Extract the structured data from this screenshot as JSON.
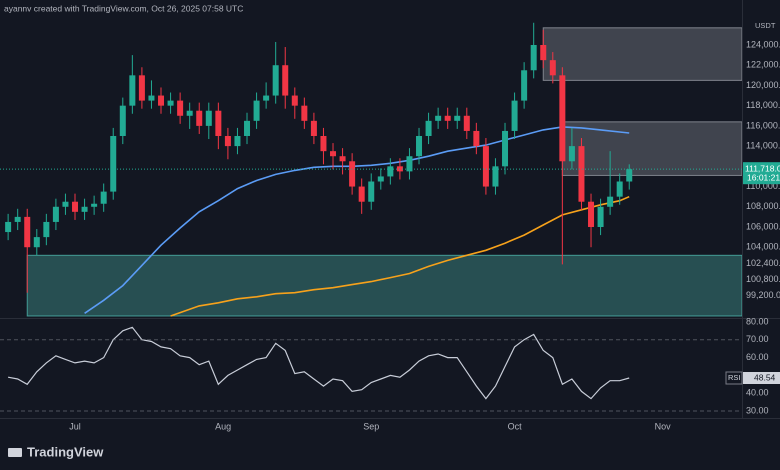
{
  "header": {
    "caption": "ayannv created with TradingView.com, Oct 26, 2025 07:58 UTC",
    "brand": "TradingView"
  },
  "chart_data": [
    {
      "type": "candlestick",
      "unit": "USDT",
      "up_color": "#22ab94",
      "down_color": "#f23645",
      "x": [
        0,
        1,
        2,
        3,
        4,
        5,
        6,
        7,
        8,
        9,
        10,
        11,
        12,
        13,
        14,
        15,
        16,
        17,
        18,
        19,
        20,
        21,
        22,
        23,
        24,
        25,
        26,
        27,
        28,
        29,
        30,
        31,
        32,
        33,
        34,
        35,
        36,
        37,
        38,
        39,
        40,
        41,
        42,
        43,
        44,
        45,
        46,
        47,
        48,
        49,
        50,
        51,
        52,
        53,
        54,
        55,
        56,
        57,
        58,
        59,
        60,
        61,
        62,
        63,
        64,
        65
      ],
      "open": [
        105500,
        106500,
        107000,
        104000,
        105000,
        106500,
        108000,
        108500,
        107500,
        108000,
        108300,
        109500,
        115000,
        118000,
        121000,
        118500,
        119000,
        118000,
        118500,
        117000,
        117500,
        116000,
        117500,
        115000,
        114000,
        115000,
        116500,
        118500,
        119000,
        122000,
        119000,
        118000,
        116500,
        115000,
        113500,
        113000,
        112500,
        110000,
        108500,
        110500,
        111000,
        112000,
        111500,
        113000,
        115000,
        116500,
        117000,
        116500,
        117000,
        115500,
        114000,
        110000,
        112000,
        115500,
        118500,
        121500,
        124000,
        122500,
        121000,
        112500,
        114000,
        108500,
        106000,
        108000,
        109000,
        110500
      ],
      "high": [
        107300,
        107800,
        107800,
        105800,
        107300,
        108800,
        109300,
        109300,
        108800,
        109100,
        110300,
        115800,
        118800,
        123000,
        121800,
        120500,
        119800,
        119300,
        119300,
        118300,
        118300,
        118300,
        118300,
        115800,
        115800,
        117300,
        119300,
        120300,
        124300,
        123800,
        119800,
        118800,
        117300,
        115800,
        114300,
        113800,
        113300,
        110800,
        111300,
        111800,
        112800,
        112800,
        113800,
        115800,
        117300,
        117800,
        117800,
        117800,
        117800,
        116300,
        114800,
        112800,
        116300,
        119300,
        122300,
        126200,
        125500,
        123300,
        121800,
        115800,
        114800,
        109300,
        108800,
        113500,
        111300,
        112200
      ],
      "low": [
        104700,
        105700,
        99500,
        103200,
        104200,
        105700,
        107200,
        106700,
        106700,
        107200,
        107500,
        108700,
        114200,
        117200,
        117700,
        117700,
        117200,
        117200,
        116200,
        115700,
        115200,
        114700,
        113700,
        112700,
        113200,
        114200,
        115700,
        117700,
        118200,
        117700,
        116700,
        115700,
        114200,
        112200,
        111700,
        111200,
        109200,
        107300,
        107700,
        109700,
        110200,
        110700,
        110700,
        112200,
        114200,
        115700,
        115700,
        115700,
        114700,
        113200,
        109200,
        109200,
        111200,
        114700,
        117700,
        120700,
        121700,
        120200,
        102300,
        111700,
        107700,
        104000,
        105200,
        107200,
        108200,
        109700
      ],
      "close": [
        106500,
        107000,
        104000,
        105000,
        106500,
        108000,
        108500,
        107500,
        108000,
        108300,
        109500,
        115000,
        118000,
        121000,
        118500,
        119000,
        118000,
        118500,
        117000,
        117500,
        116000,
        117500,
        115000,
        114000,
        115000,
        116500,
        118500,
        119000,
        122000,
        119000,
        118000,
        116500,
        115000,
        113500,
        113000,
        112500,
        110000,
        108500,
        110500,
        111000,
        112000,
        111500,
        113000,
        115000,
        116500,
        117000,
        116500,
        117000,
        115500,
        114000,
        110000,
        112000,
        115500,
        118500,
        121500,
        124000,
        122500,
        121000,
        112500,
        114000,
        108500,
        106000,
        108000,
        109000,
        110500,
        111718
      ],
      "series": [
        {
          "color": "#5b9cf6",
          "x": [
            8,
            10,
            12,
            14,
            16,
            18,
            20,
            22,
            24,
            26,
            28,
            30,
            32,
            34,
            36,
            38,
            40,
            42,
            44,
            46,
            48,
            50,
            52,
            54,
            56,
            58,
            60,
            62,
            64,
            65
          ],
          "values": [
            97460,
            98750,
            100200,
            102200,
            104200,
            105900,
            107500,
            108600,
            109800,
            110600,
            111200,
            111600,
            111900,
            112000,
            112000,
            112100,
            112300,
            112600,
            113000,
            113500,
            113800,
            114100,
            114600,
            115100,
            115600,
            115900,
            115800,
            115600,
            115400,
            115300
          ]
        },
        {
          "color": "#f7a21b",
          "x": [
            17,
            20,
            22,
            24,
            26,
            28,
            30,
            32,
            34,
            36,
            38,
            40,
            42,
            44,
            46,
            48,
            50,
            52,
            54,
            56,
            58,
            60,
            62,
            64,
            65
          ],
          "values": [
            97200,
            98200,
            98500,
            98900,
            99100,
            99400,
            99500,
            99800,
            100000,
            100300,
            100600,
            101000,
            101400,
            102100,
            102700,
            103200,
            103700,
            104400,
            105200,
            106200,
            107200,
            107700,
            108200,
            108600,
            109000
          ]
        }
      ],
      "zones": [
        {
          "start": 56,
          "low": 120500,
          "high": 125700,
          "color": "#9598a1"
        },
        {
          "start": 58,
          "low": 111100,
          "high": 116400,
          "color": "#9598a1"
        },
        {
          "start": 2,
          "low": 97200,
          "high": 103200,
          "color": "#4db6ac"
        }
      ],
      "price_label": {
        "value": 111718,
        "label": "111,718.0",
        "countdown": "16:01:21"
      },
      "xlim": [
        -0.85,
        76.8
      ],
      "ylim": [
        97000,
        128450
      ],
      "yticks": [
        {
          "value": 124000,
          "label": "124,000.0"
        },
        {
          "value": 122000,
          "label": "122,000.0"
        },
        {
          "value": 120000,
          "label": "120,000.0"
        },
        {
          "value": 118000,
          "label": "118,000.0"
        },
        {
          "value": 116000,
          "label": "116,000.0"
        },
        {
          "value": 114000,
          "label": "114,000.0"
        },
        {
          "value": 110000,
          "label": "110,000.0"
        },
        {
          "value": 108000,
          "label": "108,000.0"
        },
        {
          "value": 106000,
          "label": "106,000.0"
        },
        {
          "value": 104000,
          "label": "104,000.0"
        },
        {
          "value": 102400,
          "label": "102,400.0"
        },
        {
          "value": 100800,
          "label": "100,800.0"
        },
        {
          "value": 99200,
          "label": "99,200.0"
        }
      ]
    },
    {
      "type": "line",
      "name": "RSI",
      "color": "#c8cdd8",
      "x": [
        0,
        1,
        2,
        3,
        4,
        5,
        6,
        7,
        8,
        9,
        10,
        11,
        12,
        13,
        14,
        15,
        16,
        17,
        18,
        19,
        20,
        21,
        22,
        23,
        24,
        25,
        26,
        27,
        28,
        29,
        30,
        31,
        32,
        33,
        34,
        35,
        36,
        37,
        38,
        39,
        40,
        41,
        42,
        43,
        44,
        45,
        46,
        47,
        48,
        49,
        50,
        51,
        52,
        53,
        54,
        55,
        56,
        57,
        58,
        59,
        60,
        61,
        62,
        63,
        64,
        65
      ],
      "values": [
        49,
        48,
        45,
        52,
        57,
        61,
        59,
        57,
        58,
        57,
        60,
        70,
        75,
        77,
        70,
        69,
        66,
        65,
        61,
        60,
        56,
        58,
        45,
        50,
        53,
        56,
        59,
        60,
        68,
        64,
        51,
        52,
        48,
        44,
        48,
        47,
        41,
        42,
        46,
        48,
        50,
        49,
        53,
        58,
        61,
        62,
        60,
        60,
        52,
        44,
        37,
        44,
        55,
        66,
        70,
        73,
        64,
        60,
        45,
        48,
        41,
        37,
        43,
        47,
        47,
        48.54
      ],
      "levels": [
        70,
        30
      ],
      "xlim": [
        -0.85,
        76.8
      ],
      "ylim": [
        26.1,
        82.2
      ],
      "yticks": [
        {
          "value": 80,
          "label": "80.00"
        },
        {
          "value": 70,
          "label": "70.00"
        },
        {
          "value": 60,
          "label": "60.00"
        },
        {
          "value": 40,
          "label": "40.00"
        },
        {
          "value": 30,
          "label": "30.00"
        }
      ],
      "xticks": [
        {
          "value": 7,
          "label": "Jul"
        },
        {
          "value": 22.5,
          "label": "Aug"
        },
        {
          "value": 38,
          "label": "Sep"
        },
        {
          "value": 53,
          "label": "Oct"
        },
        {
          "value": 68.5,
          "label": "Nov"
        }
      ]
    }
  ]
}
